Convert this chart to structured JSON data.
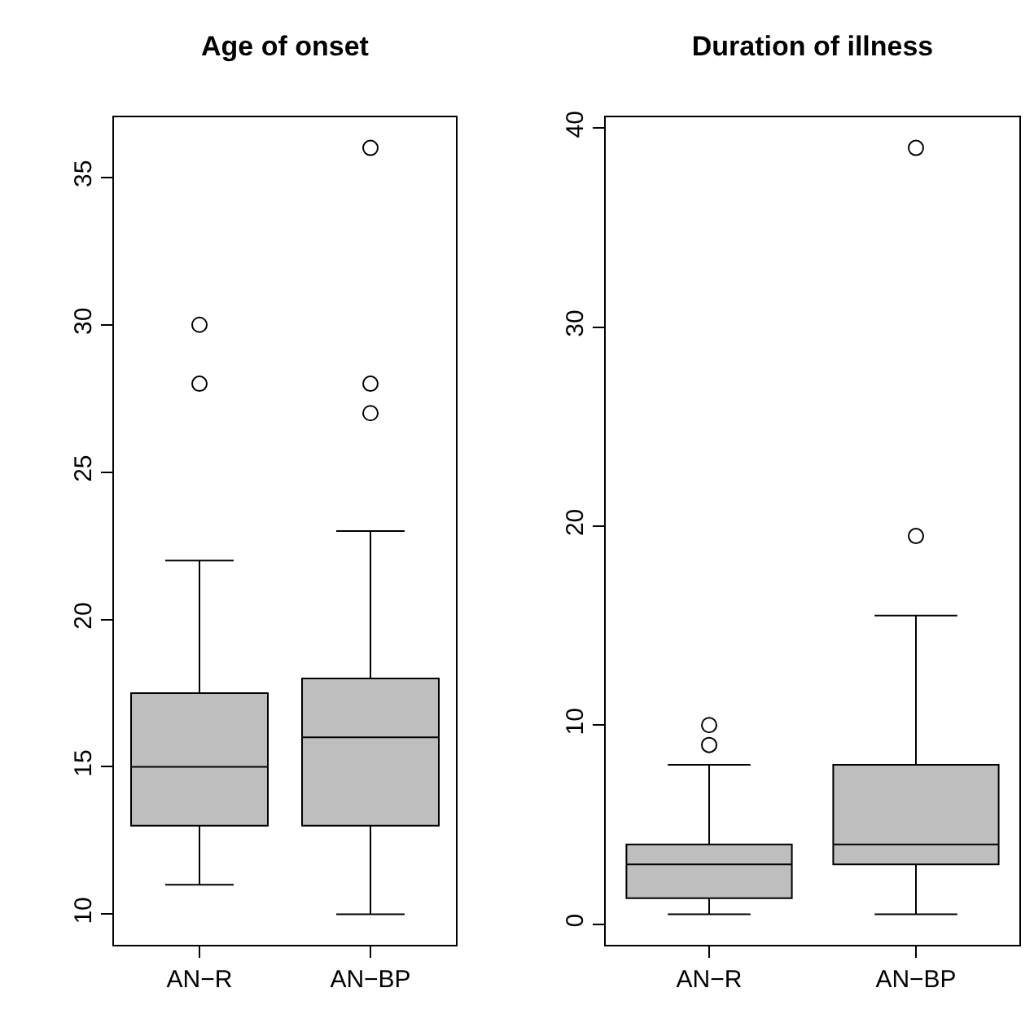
{
  "chart_data": [
    {
      "type": "box",
      "title": "Age of onset",
      "categories": [
        "AN−R",
        "AN−BP"
      ],
      "color": "#bebebe",
      "ylim": [
        8.96,
        37.04
      ],
      "yticks": [
        10,
        15,
        20,
        25,
        30,
        35
      ],
      "boxes": [
        {
          "low": 11,
          "q1": 13,
          "median": 15,
          "q3": 17.5,
          "high": 22,
          "outliers": [
            28,
            30
          ]
        },
        {
          "low": 10,
          "q1": 13,
          "median": 16,
          "q3": 18,
          "high": 23,
          "outliers": [
            27,
            28,
            36
          ]
        }
      ]
    },
    {
      "type": "box",
      "title": "Duration of illness",
      "categories": [
        "AN−R",
        "AN−BP"
      ],
      "color": "#bebebe",
      "ylim": [
        -1.04,
        40.54
      ],
      "yticks": [
        0,
        10,
        20,
        30,
        40
      ],
      "boxes": [
        {
          "low": 0.5,
          "q1": 1.3,
          "median": 3,
          "q3": 4,
          "high": 8,
          "outliers": [
            9,
            10
          ]
        },
        {
          "low": 0.5,
          "q1": 3,
          "median": 4,
          "q3": 8,
          "high": 15.5,
          "outliers": [
            19.5,
            39
          ]
        }
      ]
    }
  ]
}
